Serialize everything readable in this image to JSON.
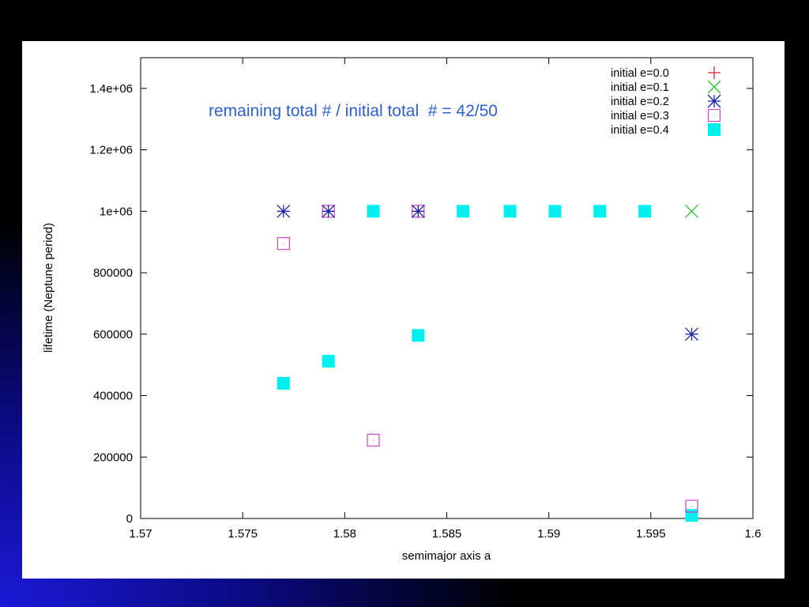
{
  "chart_data": {
    "type": "scatter",
    "title": "",
    "annotation": "remaining total # / initial total  # = 42/50",
    "xlabel": "semimajor axis a",
    "ylabel": "lifetime (Neptune period)",
    "xlim": [
      1.57,
      1.6
    ],
    "ylim": [
      0,
      1500000
    ],
    "x_ticks": [
      1.57,
      1.575,
      1.58,
      1.585,
      1.59,
      1.595,
      1.6
    ],
    "x_tick_labels": [
      "1.57",
      "1.575",
      "1.58",
      "1.585",
      "1.59",
      "1.595",
      "1.6"
    ],
    "y_ticks": [
      0,
      200000,
      400000,
      600000,
      800000,
      1000000,
      1200000,
      1400000
    ],
    "y_tick_labels": [
      "0",
      "200000",
      "400000",
      "600000",
      "800000",
      "1e+06",
      "1.2e+06",
      "1.4e+06"
    ],
    "grid": false,
    "legend_position": "top-right",
    "series": [
      {
        "name": "initial e=0.0",
        "marker": "plus",
        "color": "#e0262a",
        "x": [],
        "y": []
      },
      {
        "name": "initial e=0.1",
        "marker": "cross",
        "color": "#22cc22",
        "x": [
          1.597
        ],
        "y": [
          1000000
        ]
      },
      {
        "name": "initial e=0.2",
        "marker": "star",
        "color": "#1a22a8",
        "x": [
          1.577,
          1.5792,
          1.5836,
          1.597
        ],
        "y": [
          1000000,
          1000000,
          1000000,
          600000
        ]
      },
      {
        "name": "initial e=0.3",
        "marker": "open-square",
        "color": "#cc44cc",
        "x": [
          1.577,
          1.5792,
          1.5814,
          1.5836,
          1.597
        ],
        "y": [
          895000,
          1000000,
          255000,
          1000000,
          40000
        ]
      },
      {
        "name": "initial e=0.4",
        "marker": "filled-square",
        "color": "#00f0f0",
        "x": [
          1.577,
          1.5792,
          1.5814,
          1.5836,
          1.5858,
          1.5881,
          1.5903,
          1.5925,
          1.5947,
          1.597
        ],
        "y": [
          440000,
          512000,
          1000000,
          596000,
          1000000,
          1000000,
          1000000,
          1000000,
          1000000,
          10000
        ]
      }
    ]
  }
}
